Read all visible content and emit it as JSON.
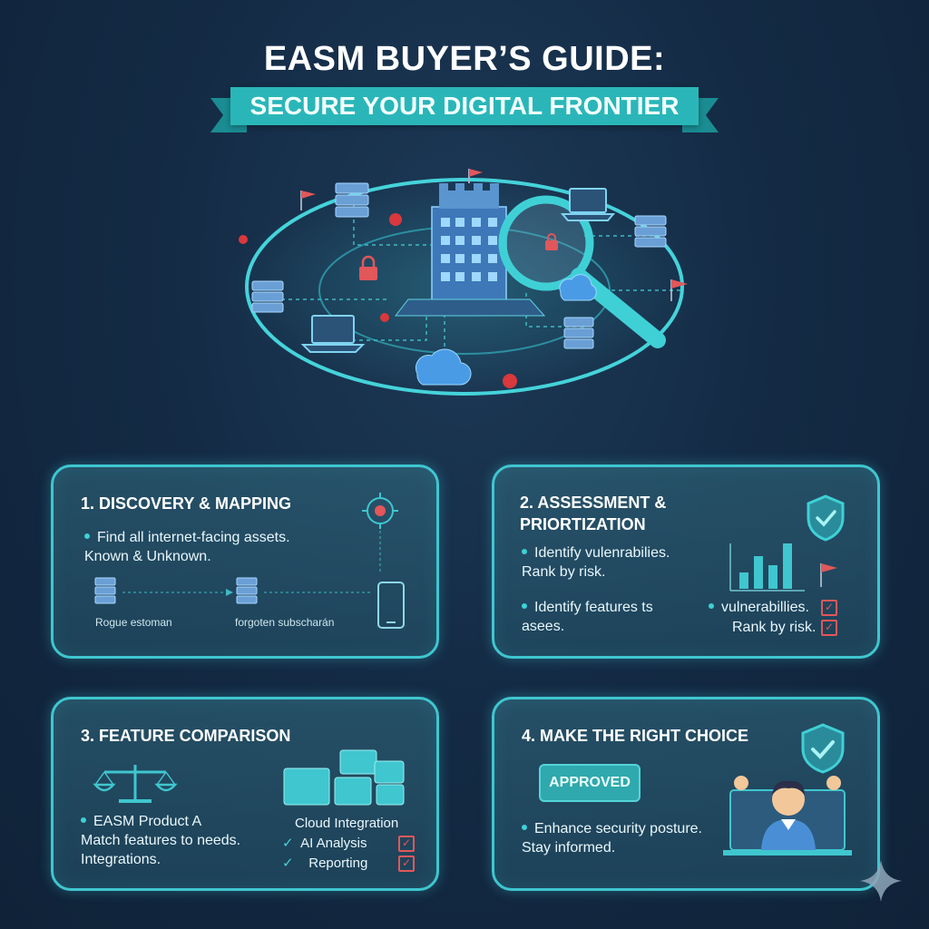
{
  "header": {
    "title": "EASM BUYER’S GUIDE:",
    "subtitle": "SECURE YOUR DIGITAL FRONTIER"
  },
  "cards": [
    {
      "heading": "1. DISCOVERY & MAPPING",
      "bullets": [
        "Find all internet-facing assets.\nKnown & Unknown."
      ],
      "labels": [
        "Rogue  estoman",
        "forgoten subscharán"
      ]
    },
    {
      "heading": "2. ASSESSMENT &\nPRIORTIZATION",
      "bullets": [
        "Identify vulenrabilies.\nRank by risk.",
        "Identify features ts\nasees."
      ],
      "checklist": [
        "vulnerabillies.",
        "Rank by risk."
      ]
    },
    {
      "heading": "3. FEATURE COMPARISON",
      "bullets": [
        "EASM Product A\nMatch features to needs.\nIntegrations."
      ],
      "feature_title": "Cloud Integration",
      "features": [
        "AI Analysis",
        "Reporting"
      ]
    },
    {
      "heading": "4. MAKE THE RIGHT CHOICE",
      "badge": "APPROVED",
      "bullets": [
        "Enhance security posture.\nStay informed."
      ]
    }
  ],
  "colors": {
    "accent": "#3fc6cf",
    "ribbon": "#2ab6b8",
    "alert": "#e2575a",
    "background": "#142b45"
  }
}
